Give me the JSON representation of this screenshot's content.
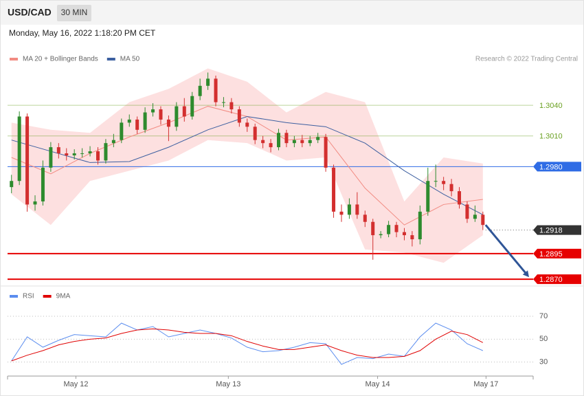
{
  "header": {
    "symbol": "USD/CAD",
    "timeframe": "30 MIN",
    "timestamp": "Monday, May 16, 2022 1:18:20 PM CET",
    "credit": "Research © 2022 Trading Central"
  },
  "chart_data": [
    {
      "type": "candlestick",
      "open": [
        1.296,
        1.2966,
        1.3029,
        1.2943,
        1.2946,
        1.2979,
        1.2999,
        1.2993,
        1.2991,
        1.2993,
        1.2993,
        1.2995,
        1.2986,
        1.3003,
        1.3006,
        1.3023,
        1.3026,
        1.3016,
        1.3033,
        1.3036,
        1.3026,
        1.3019,
        1.3039,
        1.3029,
        1.3049,
        1.3059,
        1.3066,
        1.3043,
        1.3043,
        1.3036,
        1.3023,
        1.3019,
        1.3006,
        1.3003,
        1.2999,
        1.3013,
        1.3003,
        1.3006,
        1.3003,
        1.3006,
        1.3009,
        1.2979,
        1.2936,
        1.2933,
        1.2943,
        1.2933,
        1.2926,
        1.2913,
        1.2914,
        1.2923,
        1.2916,
        1.2913,
        1.2909,
        1.2936,
        1.2966,
        1.2966,
        1.2963,
        1.2956,
        1.2943,
        1.2929,
        1.2933
      ],
      "high": [
        1.2972,
        1.3034,
        1.3032,
        1.2952,
        1.2986,
        1.3004,
        1.3003,
        1.2998,
        1.2997,
        1.2998,
        1.3,
        1.2999,
        1.3007,
        1.3012,
        1.3027,
        1.3031,
        1.3029,
        1.3038,
        1.3042,
        1.3039,
        1.303,
        1.3043,
        1.3047,
        1.3053,
        1.3066,
        1.3072,
        1.3069,
        1.3048,
        1.3047,
        1.3039,
        1.3027,
        1.3022,
        1.301,
        1.3007,
        1.3017,
        1.3016,
        1.301,
        1.3011,
        1.301,
        1.3013,
        1.3012,
        1.2982,
        1.2943,
        1.2949,
        1.2955,
        1.2937,
        1.2929,
        1.2917,
        1.2927,
        1.2926,
        1.292,
        1.2917,
        1.2942,
        1.2979,
        1.2982,
        1.297,
        1.2968,
        1.296,
        1.2946,
        1.2942,
        1.2936
      ],
      "low": [
        1.2954,
        1.2962,
        1.2936,
        1.2937,
        1.2942,
        1.2975,
        1.2988,
        1.2986,
        1.2987,
        1.2989,
        1.299,
        1.2982,
        1.2983,
        1.2999,
        1.3003,
        1.3019,
        1.3012,
        1.3013,
        1.3029,
        1.3021,
        1.3005,
        1.3015,
        1.3024,
        1.3026,
        1.3045,
        1.3055,
        1.3039,
        1.3038,
        1.3032,
        1.3019,
        1.3014,
        1.3002,
        1.2998,
        1.2994,
        1.2996,
        1.2999,
        1.2999,
        1.2999,
        1.3,
        1.3003,
        1.2975,
        1.293,
        1.2926,
        1.2929,
        1.2929,
        1.2921,
        1.2889,
        1.291,
        1.2911,
        1.2911,
        1.2908,
        1.2902,
        1.2904,
        1.2932,
        1.296,
        1.2957,
        1.2951,
        1.2939,
        1.2925,
        1.2926,
        1.2918
      ],
      "close": [
        1.2966,
        1.3029,
        1.2943,
        1.2946,
        1.2979,
        1.2999,
        1.2993,
        1.2991,
        1.2993,
        1.2993,
        1.2995,
        1.2986,
        1.3003,
        1.3006,
        1.3023,
        1.3026,
        1.3016,
        1.3033,
        1.3036,
        1.3026,
        1.3019,
        1.3039,
        1.3029,
        1.3049,
        1.3059,
        1.3066,
        1.3043,
        1.3043,
        1.3036,
        1.3023,
        1.3019,
        1.3006,
        1.3003,
        1.2999,
        1.3013,
        1.3003,
        1.3006,
        1.3003,
        1.3006,
        1.3009,
        1.2979,
        1.2936,
        1.2933,
        1.2943,
        1.2933,
        1.2926,
        1.2913,
        1.2914,
        1.2923,
        1.2916,
        1.2913,
        1.2909,
        1.2936,
        1.2966,
        1.2966,
        1.2963,
        1.2956,
        1.2943,
        1.2929,
        1.2933,
        1.2923
      ],
      "up_color": "#2e8b2e",
      "down_color": "#d32f2f",
      "xlim": [
        -0.5,
        66.4
      ],
      "ylim": [
        1.2864,
        1.3116
      ],
      "series": [
        {
          "name": "MA 20 + Bollinger Bands",
          "color": "#f28b82",
          "band_color": "#fde0e0",
          "x": [
            0,
            5,
            10,
            15,
            20,
            25,
            30,
            35,
            40,
            45,
            50,
            55,
            60
          ],
          "values": [
            1.2989,
            1.2973,
            1.2993,
            1.3009,
            1.3023,
            1.3039,
            1.3029,
            1.3006,
            1.3009,
            1.2959,
            1.2923,
            1.2943,
            1.2948
          ],
          "upper": [
            1.3023,
            1.3016,
            1.3013,
            1.3043,
            1.3056,
            1.3076,
            1.3063,
            1.3033,
            1.3053,
            1.3043,
            1.2946,
            1.2989,
            1.2983
          ],
          "lower": [
            1.2953,
            1.2923,
            1.2966,
            1.2976,
            1.2986,
            1.3006,
            1.3003,
            1.2986,
            1.2989,
            1.2899,
            1.2896,
            1.2886,
            1.2913
          ]
        },
        {
          "name": "MA 50",
          "color": "#3c5fa0",
          "x": [
            0,
            5,
            10,
            15,
            20,
            25,
            30,
            35,
            40,
            45,
            50,
            55,
            60
          ],
          "values": [
            1.3006,
            1.2995,
            1.2984,
            1.2985,
            1.2999,
            1.3016,
            1.3029,
            1.3023,
            1.3019,
            1.3003,
            1.2976,
            1.2953,
            1.2933
          ]
        }
      ],
      "levels": [
        {
          "value": 1.304,
          "label": "1.3040",
          "color": "#6aa121",
          "boxed": false,
          "line": "solid"
        },
        {
          "value": 1.301,
          "label": "1.3010",
          "color": "#6aa121",
          "boxed": false,
          "line": "solid"
        },
        {
          "value": 1.298,
          "label": "1.2980",
          "color": "#2f6ce5",
          "boxed": true,
          "line": "solid"
        },
        {
          "value": 1.2918,
          "color": "#333333",
          "boxed": true,
          "line": "dotted"
        },
        {
          "value": 1.2895,
          "color": "#e60000",
          "boxed": true,
          "line": "solid"
        },
        {
          "value": 1.287,
          "label": "1.2870",
          "color": "#e60000",
          "boxed": true,
          "line": "solid"
        }
      ]
    },
    {
      "type": "line",
      "xlim": [
        -0.5,
        66.4
      ],
      "ylim": [
        19,
        94
      ],
      "yticks": [
        70,
        50,
        30
      ],
      "xticks": [
        {
          "value": 8.2,
          "label": "May 12"
        },
        {
          "value": 27.6,
          "label": "May 13"
        },
        {
          "value": 46.6,
          "label": "May 14"
        },
        {
          "value": 60.4,
          "label": "May 17"
        }
      ],
      "series": [
        {
          "name": "RSI",
          "color": "#5b8def",
          "x": [
            0,
            2,
            4,
            6,
            8,
            10,
            12,
            14,
            16,
            18,
            20,
            22,
            24,
            26,
            28,
            30,
            32,
            34,
            36,
            38,
            40,
            42,
            44,
            46,
            48,
            50,
            52,
            54,
            56,
            58,
            60
          ],
          "values": [
            31,
            52,
            43,
            49,
            54,
            53,
            52,
            64,
            58,
            61,
            52,
            55,
            58,
            55,
            51,
            43,
            39,
            40,
            43,
            47,
            46,
            28,
            34,
            33,
            37,
            35,
            52,
            64,
            58,
            46,
            40
          ]
        },
        {
          "name": "9MA",
          "color": "#e00000",
          "x": [
            0,
            2,
            4,
            6,
            8,
            10,
            12,
            14,
            16,
            18,
            20,
            22,
            24,
            26,
            28,
            30,
            32,
            34,
            36,
            38,
            40,
            42,
            44,
            46,
            48,
            50,
            52,
            54,
            56,
            58,
            60
          ],
          "values": [
            31,
            36,
            40,
            45,
            48,
            50,
            51,
            55,
            58,
            59,
            58,
            56,
            55,
            55,
            53,
            48,
            44,
            41,
            41,
            43,
            45,
            40,
            36,
            34,
            34,
            35,
            40,
            50,
            57,
            54,
            47
          ]
        }
      ]
    }
  ]
}
